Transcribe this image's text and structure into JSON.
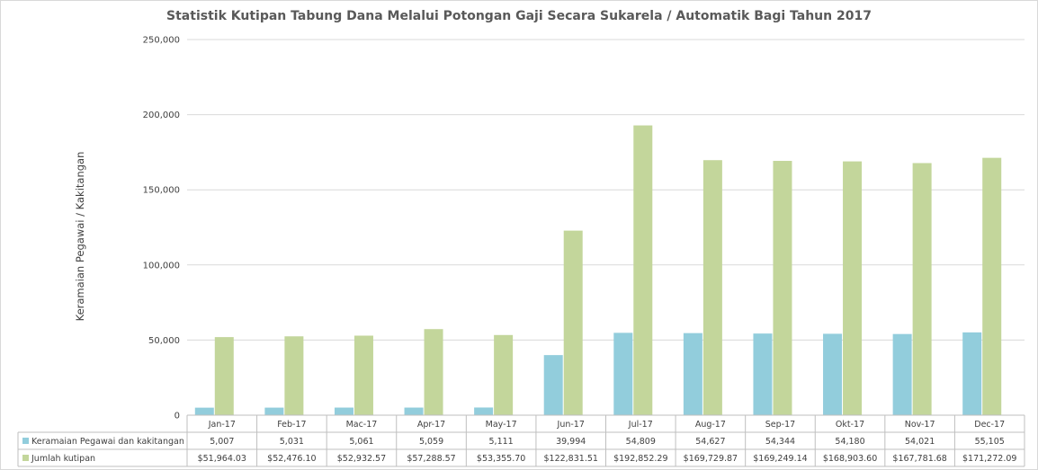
{
  "chart_data": {
    "type": "bar",
    "title": "Statistik Kutipan Tabung Dana Melalui Potongan Gaji Secara Sukarela / Automatik Bagi Tahun 2017",
    "xlabel": "",
    "ylabel": "Keramaian Pegawai / Kakitangan",
    "ylim": [
      0,
      250000
    ],
    "y_ticks": [
      "0",
      "50,000",
      "100,000",
      "150,000",
      "200,000",
      "250,000"
    ],
    "y_tick_values": [
      0,
      50000,
      100000,
      150000,
      200000,
      250000
    ],
    "grid": true,
    "legend_position": "data-table",
    "categories": [
      "Jan-17",
      "Feb-17",
      "Mac-17",
      "Apr-17",
      "May-17",
      "Jun-17",
      "Jul-17",
      "Aug-17",
      "Sep-17",
      "Okt-17",
      "Nov-17",
      "Dec-17"
    ],
    "series": [
      {
        "name": "Keramaian Pegawai dan kakitangan",
        "color": "#92cddc",
        "values": [
          5007,
          5031,
          5061,
          5059,
          5111,
          39994,
          54809,
          54627,
          54344,
          54180,
          54021,
          55105
        ],
        "labels": [
          "5,007",
          "5,031",
          "5,061",
          "5,059",
          "5,111",
          "39,994",
          "54,809",
          "54,627",
          "54,344",
          "54,180",
          "54,021",
          "55,105"
        ]
      },
      {
        "name": "Jumlah kutipan",
        "color": "#c3d69b",
        "values": [
          51964.03,
          52476.1,
          52932.57,
          57288.57,
          53355.7,
          122831.51,
          192852.29,
          169729.87,
          169249.14,
          168903.6,
          167781.68,
          171272.09
        ],
        "labels": [
          "$51,964.03",
          "$52,476.10",
          "$52,932.57",
          "$57,288.57",
          "$53,355.70",
          "$122,831.51",
          "$192,852.29",
          "$169,729.87",
          "$169,249.14",
          "$168,903.60",
          "$167,781.68",
          "$171,272.09"
        ]
      }
    ]
  }
}
